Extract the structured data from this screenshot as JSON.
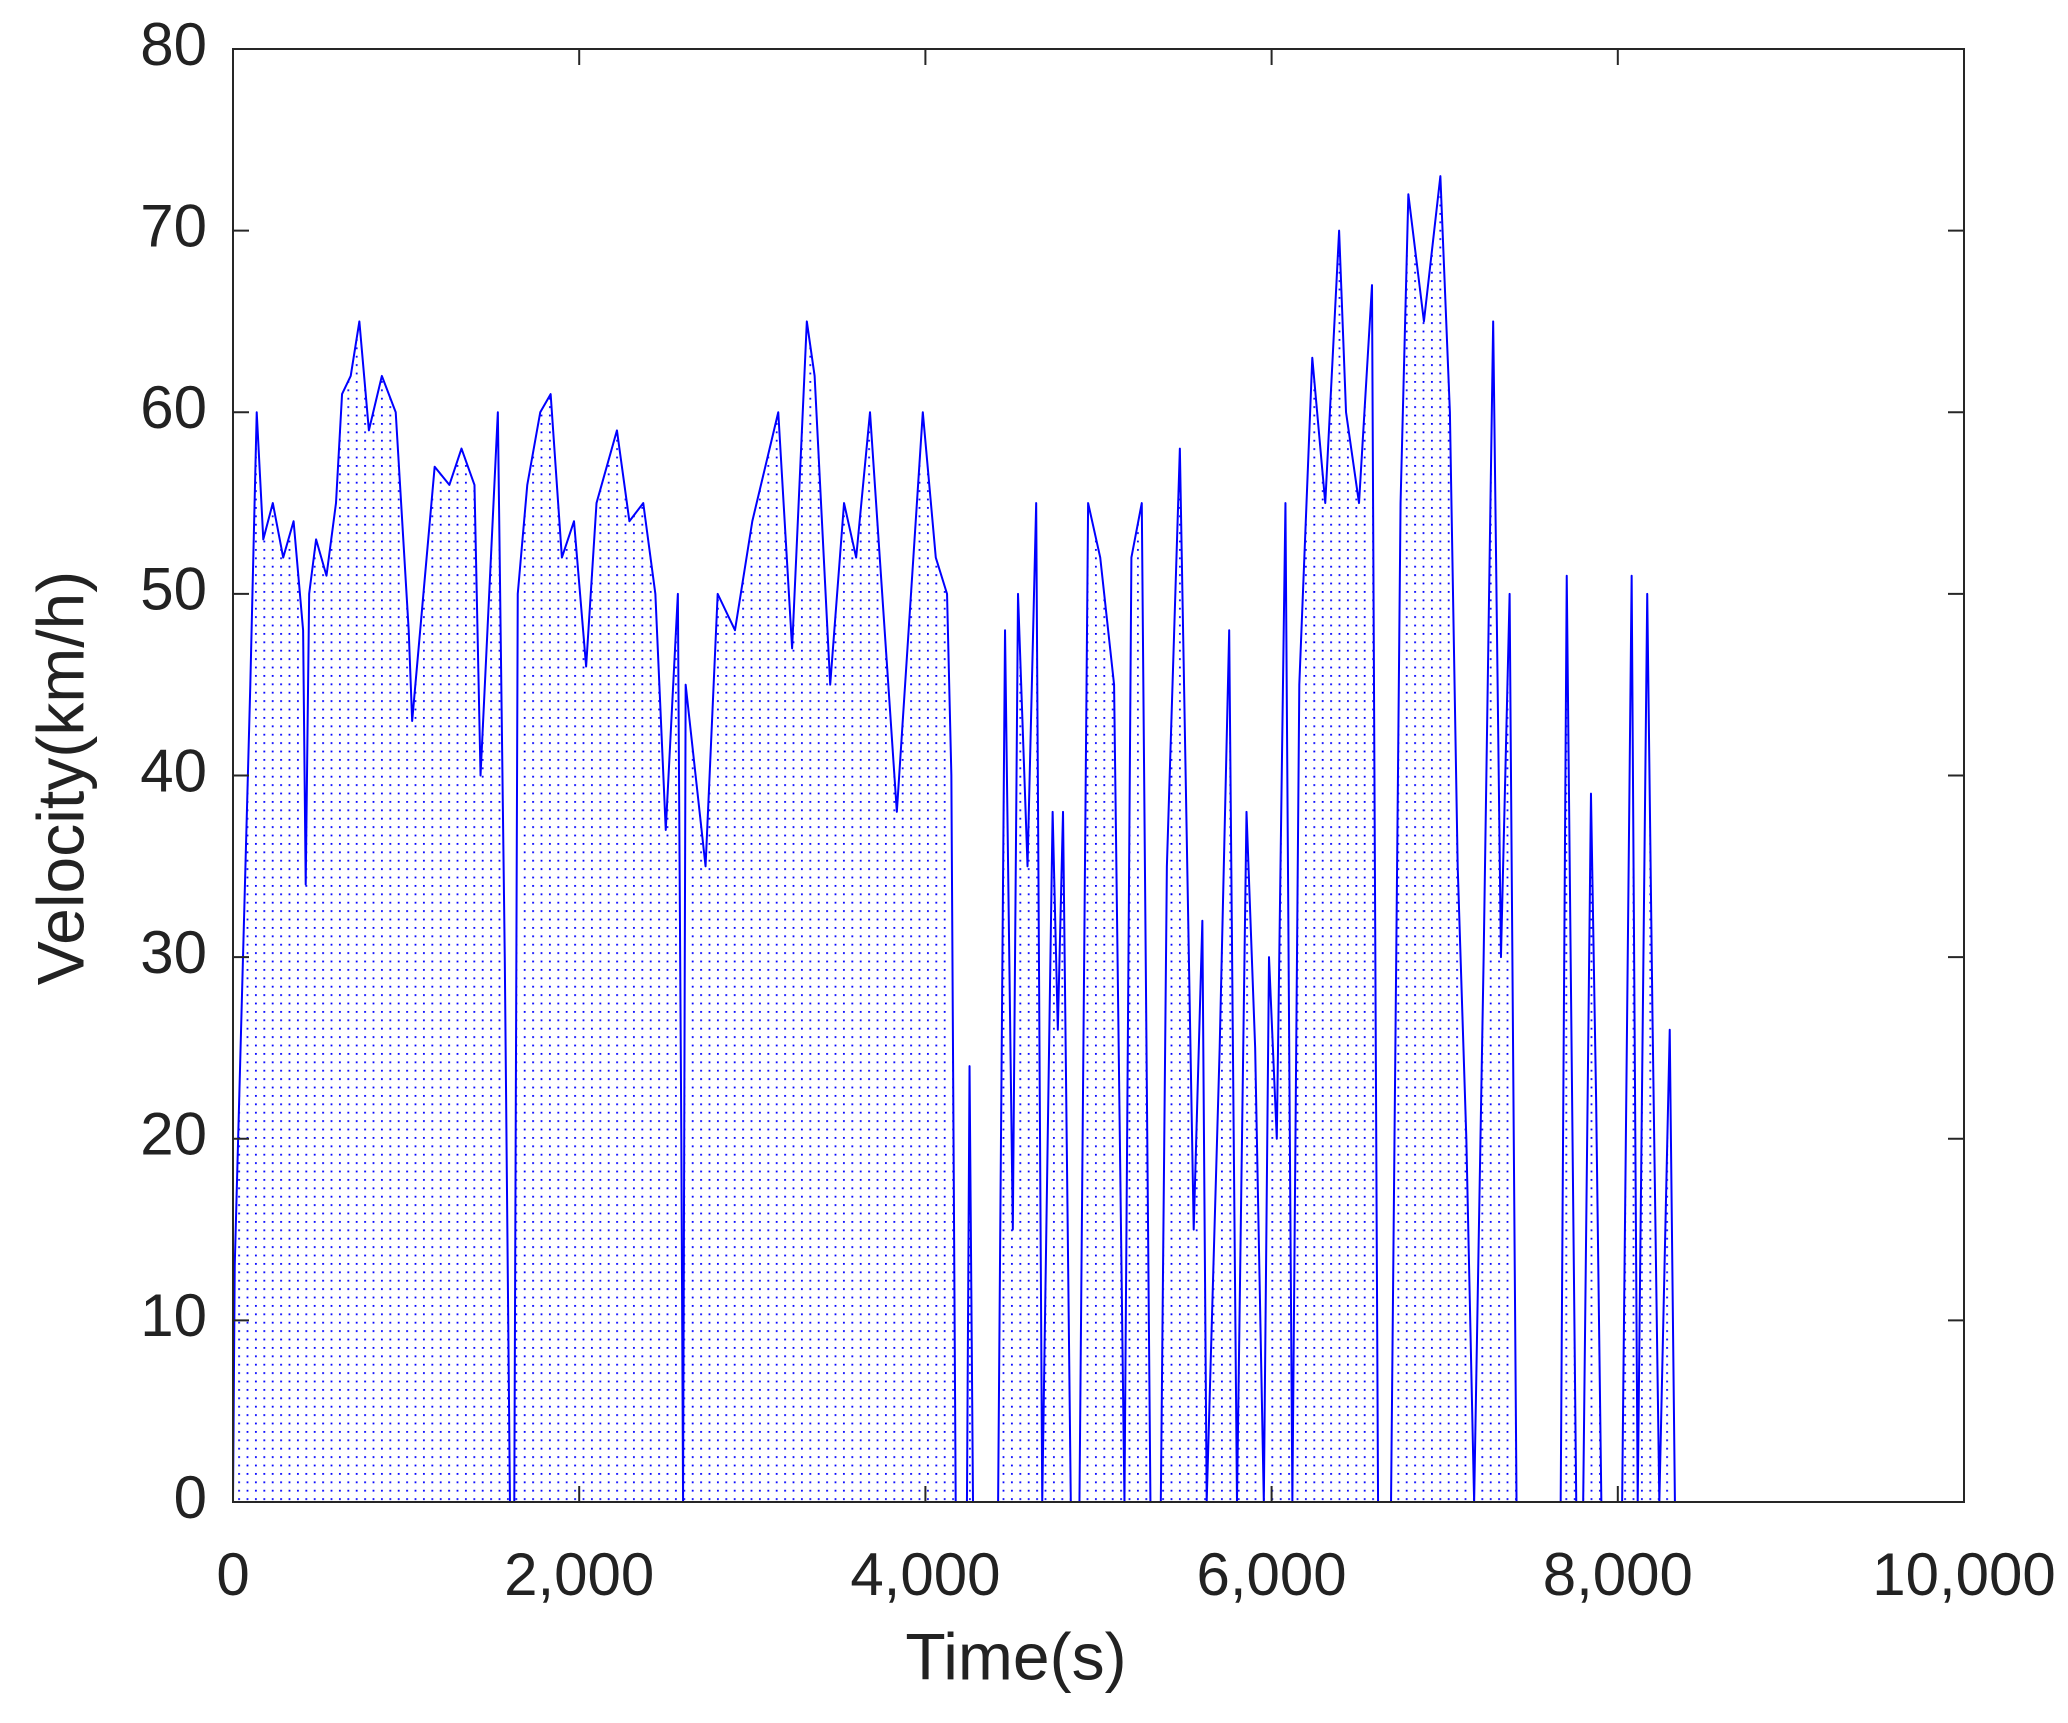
{
  "chart_data": {
    "type": "line",
    "x_label": "Time(s)",
    "y_label": "Velocity(km/h)",
    "color": "#0000ff",
    "fill_pattern": "dotted",
    "xlim": [
      0,
      10000
    ],
    "xticks": [
      0,
      {
        "value": 2000,
        "label": "2,000"
      },
      {
        "value": 4000,
        "label": "4,000"
      },
      {
        "value": 6000,
        "label": "6,000"
      },
      {
        "value": 8000,
        "label": "8,000"
      },
      {
        "value": 10000,
        "label": "10,000"
      }
    ],
    "ylim": [
      0,
      80
    ],
    "yticks": [
      0,
      10,
      20,
      30,
      40,
      50,
      60,
      70,
      80
    ],
    "x": [
      0,
      10,
      100,
      137,
      175,
      230,
      290,
      350,
      405,
      420,
      440,
      480,
      540,
      595,
      630,
      680,
      730,
      785,
      860,
      940,
      1015,
      1035,
      1100,
      1165,
      1250,
      1320,
      1395,
      1430,
      1530,
      1570,
      1600,
      1625,
      1645,
      1700,
      1775,
      1835,
      1900,
      1970,
      2040,
      2100,
      2218,
      2290,
      2370,
      2440,
      2500,
      2570,
      2590,
      2600,
      2615,
      2730,
      2800,
      2900,
      3000,
      3150,
      3230,
      3315,
      3360,
      3450,
      3530,
      3600,
      3680,
      3835,
      3985,
      4060,
      4125,
      4150,
      4175,
      4240,
      4255,
      4275,
      4420,
      4460,
      4505,
      4535,
      4590,
      4640,
      4675,
      4735,
      4765,
      4795,
      4840,
      4890,
      4940,
      5010,
      5090,
      5150,
      5190,
      5250,
      5300,
      5360,
      5395,
      5470,
      5550,
      5600,
      5625,
      5700,
      5755,
      5800,
      5855,
      5905,
      5955,
      5985,
      6030,
      6080,
      6120,
      6160,
      6235,
      6310,
      6390,
      6430,
      6505,
      6580,
      6615,
      6690,
      6745,
      6790,
      6880,
      6975,
      7030,
      7075,
      7125,
      7170,
      7225,
      7280,
      7325,
      7375,
      7415,
      7670,
      7705,
      7760,
      7800,
      7845,
      7875,
      7905,
      8025,
      8080,
      8115,
      8170,
      8200,
      8240,
      8300,
      8330
    ],
    "values": [
      0,
      13,
      45,
      60,
      53,
      55,
      52,
      54,
      48,
      34,
      50,
      53,
      51,
      55,
      61,
      62,
      65,
      59,
      62,
      60,
      48,
      43,
      50,
      57,
      56,
      58,
      56,
      40,
      60,
      30,
      0,
      0,
      50,
      56,
      60,
      61,
      52,
      54,
      46,
      55,
      59,
      54,
      55,
      50,
      37,
      50,
      20,
      0,
      45,
      35,
      50,
      48,
      54,
      60,
      47,
      65,
      62,
      45,
      55,
      52,
      60,
      38,
      60,
      52,
      50,
      40,
      0,
      0,
      24,
      0,
      0,
      48,
      15,
      50,
      35,
      55,
      0,
      38,
      26,
      38,
      0,
      0,
      55,
      52,
      45,
      0,
      52,
      55,
      0,
      0,
      35,
      58,
      15,
      32,
      0,
      25,
      48,
      0,
      38,
      25,
      0,
      30,
      20,
      55,
      0,
      45,
      63,
      55,
      70,
      60,
      55,
      67,
      0,
      0,
      55,
      72,
      65,
      73,
      60,
      35,
      20,
      0,
      30,
      65,
      30,
      50,
      0,
      0,
      51,
      0,
      0,
      39,
      22,
      0,
      0,
      51,
      0,
      50,
      27,
      0,
      26,
      0
    ]
  }
}
